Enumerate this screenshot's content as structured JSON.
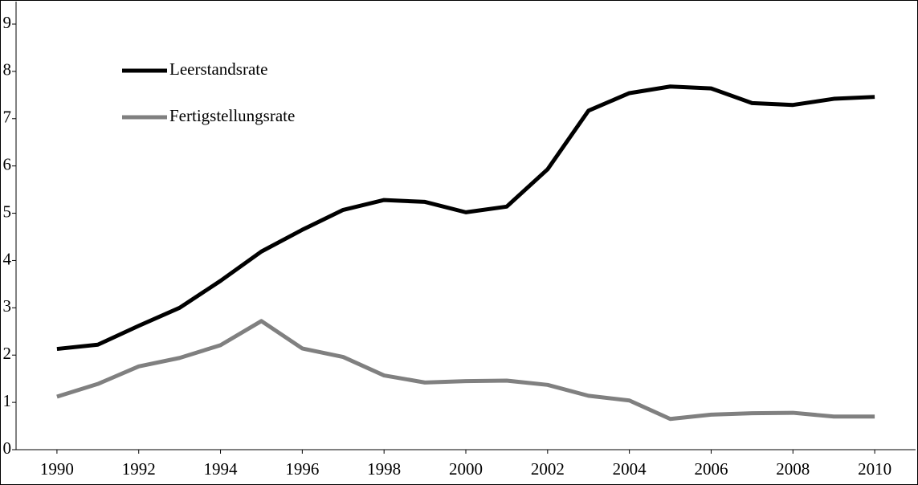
{
  "chart_data": {
    "type": "line",
    "x": [
      1990,
      1991,
      1992,
      1993,
      1994,
      1995,
      1996,
      1997,
      1998,
      1999,
      2000,
      2001,
      2002,
      2003,
      2004,
      2005,
      2006,
      2007,
      2008,
      2009,
      2010
    ],
    "series": [
      {
        "name": "Leerstandsrate",
        "color": "#000000",
        "values": [
          2.13,
          2.22,
          2.62,
          3.0,
          3.57,
          4.19,
          4.65,
          5.07,
          5.28,
          5.24,
          5.02,
          5.14,
          5.93,
          7.17,
          7.54,
          7.68,
          7.64,
          7.33,
          7.29,
          7.42,
          7.46
        ]
      },
      {
        "name": "Fertigstellungsrate",
        "color": "#808080",
        "values": [
          1.12,
          1.39,
          1.76,
          1.94,
          2.21,
          2.72,
          2.14,
          1.96,
          1.57,
          1.42,
          1.45,
          1.46,
          1.37,
          1.14,
          1.04,
          0.65,
          0.74,
          0.77,
          0.78,
          0.7,
          0.7
        ]
      }
    ],
    "xlim": [
      1989,
      2011
    ],
    "xticks": [
      1990,
      1992,
      1994,
      1996,
      1998,
      2000,
      2002,
      2004,
      2006,
      2008,
      2010
    ],
    "ylim": [
      0,
      9
    ],
    "yticks": [
      0,
      1,
      2,
      3,
      4,
      5,
      6,
      7,
      8,
      9
    ],
    "grid": false,
    "legend": "upper left"
  }
}
